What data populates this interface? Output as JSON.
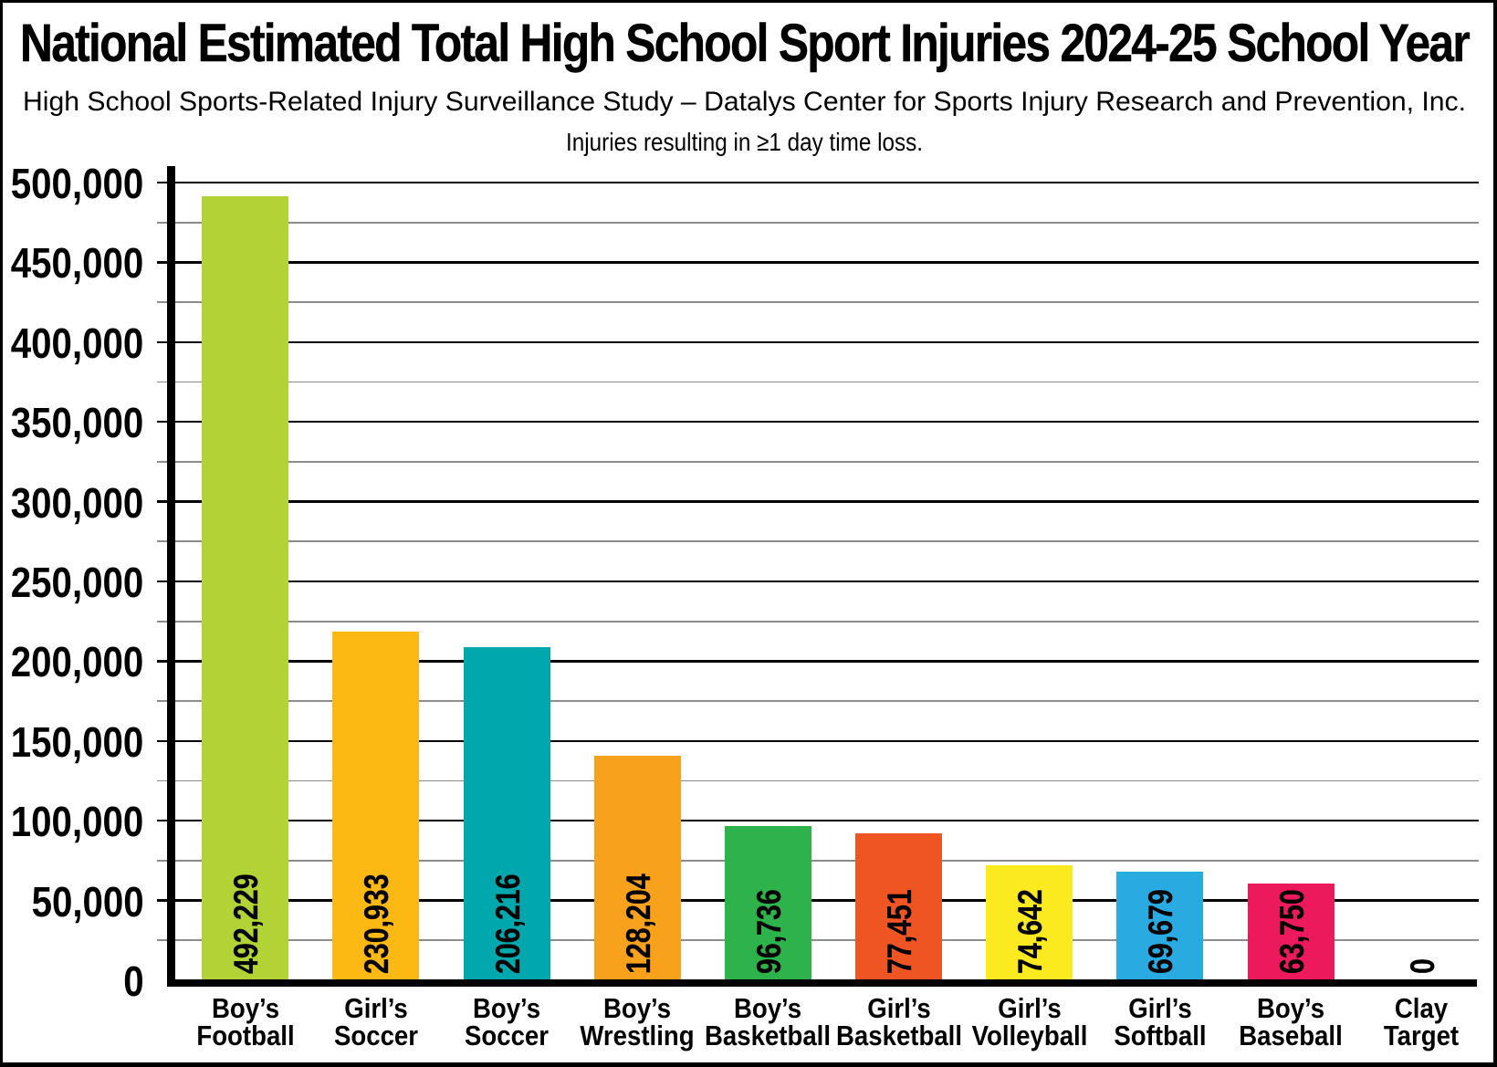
{
  "title": "National Estimated Total High School Sport Injuries 2024-25 School Year",
  "subtitle": "High School Sports-Related Injury Surveillance Study – Datalys Center for Sports Injury Research and Prevention, Inc.",
  "note": "Injuries resulting in ≥1 day time loss.",
  "chart_data": {
    "type": "bar",
    "title": "National Estimated Total High School Sport Injuries 2024-25 School Year",
    "subtitle": "High School Sports-Related Injury Surveillance Study – Datalys Center for Sports Injury Research and Prevention, Inc.",
    "annotation": "Injuries resulting in ≥1 day time loss.",
    "xlabel": "",
    "ylabel": "",
    "ylim": [
      0,
      500000
    ],
    "ytick_step": 50000,
    "yminor_step": 25000,
    "grid": "horizontal, major black + minor gray",
    "legend": "none",
    "ytick_labels": [
      "0",
      "50,000",
      "100,000",
      "150,000",
      "200,000",
      "250,000",
      "300,000",
      "350,000",
      "400,000",
      "450,000",
      "500,000"
    ],
    "bars": [
      {
        "category": [
          "Boy’s",
          "Football"
        ],
        "value": 492229,
        "value_label": "492,229",
        "color": "#b2d235",
        "drawn_value": 491700
      },
      {
        "category": [
          "Girl’s",
          "Soccer"
        ],
        "value": 230933,
        "value_label": "230,933",
        "color": "#fcb813",
        "drawn_value": 218400
      },
      {
        "category": [
          "Boy’s",
          "Soccer"
        ],
        "value": 206216,
        "value_label": "206,216",
        "color": "#00a7ac",
        "drawn_value": 208800
      },
      {
        "category": [
          "Boy’s",
          "Wrestling"
        ],
        "value": 128204,
        "value_label": "128,204",
        "color": "#f7a11c",
        "drawn_value": 140500
      },
      {
        "category": [
          "Boy’s",
          "Basketball"
        ],
        "value": 96736,
        "value_label": "96,736",
        "color": "#2eb24c",
        "drawn_value": 96700
      },
      {
        "category": [
          "Girl’s",
          "Basketball"
        ],
        "value": 77451,
        "value_label": "77,451",
        "color": "#ef5423",
        "drawn_value": 91900
      },
      {
        "category": [
          "Girl’s",
          "Volleyball"
        ],
        "value": 74642,
        "value_label": "74,642",
        "color": "#fcea20",
        "drawn_value": 71900
      },
      {
        "category": [
          "Girl’s",
          "Softball"
        ],
        "value": 69679,
        "value_label": "69,679",
        "color": "#29abe2",
        "drawn_value": 67800
      },
      {
        "category": [
          "Boy’s",
          "Baseball"
        ],
        "value": 63750,
        "value_label": "63,750",
        "color": "#ec1a5c",
        "drawn_value": 60400
      },
      {
        "category": [
          "Clay",
          "Target"
        ],
        "value": 0,
        "value_label": "0",
        "color": null,
        "drawn_value": 0
      }
    ]
  }
}
